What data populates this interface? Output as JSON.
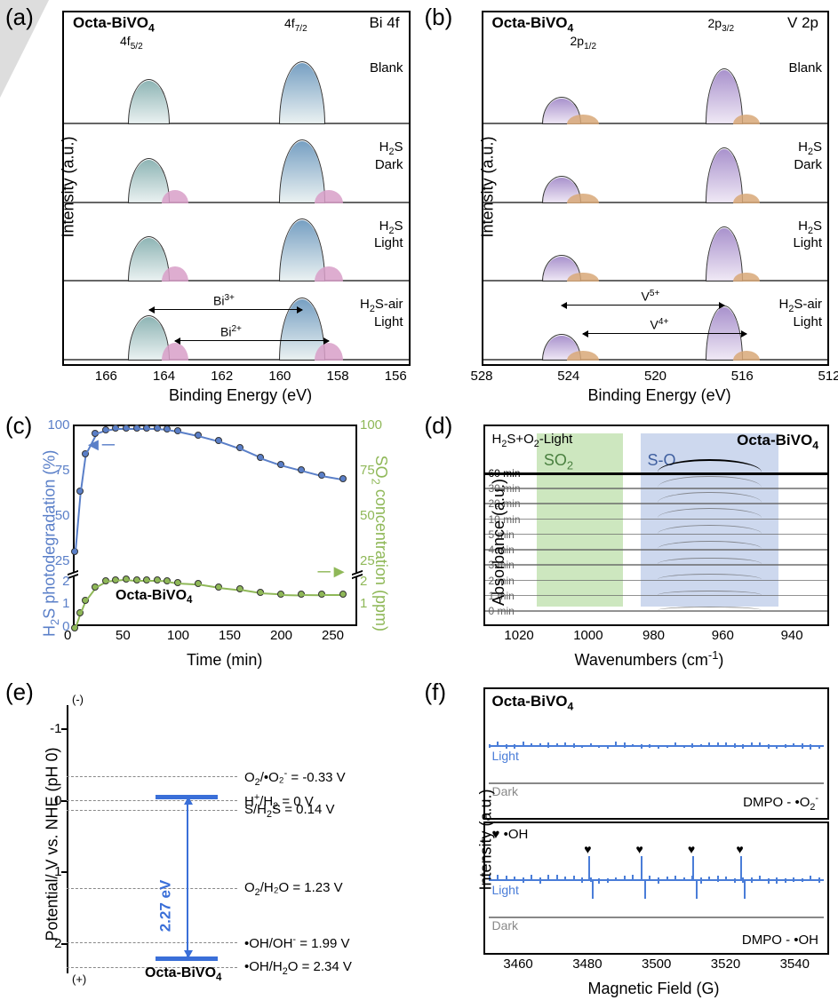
{
  "panels": {
    "a": {
      "label": "(a)",
      "title": "Octa-BiVO₄",
      "orbital": "Bi 4f",
      "y_axis": "Intensity (a.u.)",
      "x_axis": "Binding Energy (eV)",
      "x_ticks": [
        166,
        164,
        162,
        160,
        158,
        156
      ],
      "xlim": [
        167.5,
        155.5
      ],
      "rows": [
        "Blank",
        "H₂S\nDark",
        "H₂S\nLight",
        "H₂S-air\nLight"
      ],
      "peak_labels": {
        "left": "4f",
        "left_sub": "5/2",
        "right": "4f",
        "right_sub": "7/2"
      },
      "species": {
        "major": "Bi³⁺",
        "minor": "Bi²⁺"
      },
      "colors": {
        "peak_major": "#7ba8a8",
        "peak_major2": "#5f8fb8",
        "peak_minor": "#d89fc8",
        "outline": "#333333"
      },
      "peak_positions_ev": {
        "bi3_4f52": 164.5,
        "bi3_4f72": 159.2,
        "bi2_4f52": 163.6,
        "bi2_4f72": 158.3
      }
    },
    "b": {
      "label": "(b)",
      "title": "Octa-BiVO₄",
      "orbital": "V 2p",
      "y_axis": "Intensity (a.u.)",
      "x_axis": "Binding Energy (eV)",
      "x_ticks": [
        528,
        524,
        520,
        516,
        512
      ],
      "xlim": [
        528,
        512
      ],
      "rows": [
        "Blank",
        "H₂S\nDark",
        "H₂S\nLight",
        "H₂S-air\nLight"
      ],
      "peak_labels": {
        "left": "2p",
        "left_sub": "1/2",
        "right": "2p",
        "right_sub": "3/2"
      },
      "species": {
        "major": "V⁵⁺",
        "minor": "V⁴⁺"
      },
      "colors": {
        "peak_major": "#9a7fc4",
        "peak_minor": "#d8a878",
        "outline": "#333333"
      },
      "peak_positions_ev": {
        "v5_2p12": 524.3,
        "v5_2p32": 516.8,
        "v4_2p12": 523.3,
        "v4_2p32": 515.8
      }
    },
    "c": {
      "label": "(c)",
      "title": "Octa-BiVO₄",
      "y_axis_left": "H₂S photodegradation (%)",
      "y_axis_right": "SO₂ concentration (ppm)",
      "x_axis": "Time (min)",
      "x_ticks": [
        0,
        50,
        100,
        150,
        200,
        250
      ],
      "xlim": [
        0,
        275
      ],
      "y_left_ticks_upper": [
        25,
        50,
        75,
        100
      ],
      "y_left_ticks_lower": [
        0,
        1,
        2
      ],
      "y_right_ticks_upper": [
        25,
        50,
        75,
        100
      ],
      "y_right_ticks_lower": [
        1,
        2
      ],
      "colors": {
        "h2s": "#5a7fc8",
        "so2": "#8fb858"
      },
      "break_pos_pct": 25,
      "h2s_data": [
        {
          "t": 0,
          "v": 31
        },
        {
          "t": 5,
          "v": 64
        },
        {
          "t": 10,
          "v": 85
        },
        {
          "t": 20,
          "v": 96
        },
        {
          "t": 30,
          "v": 98
        },
        {
          "t": 40,
          "v": 99
        },
        {
          "t": 50,
          "v": 99
        },
        {
          "t": 60,
          "v": 99
        },
        {
          "t": 70,
          "v": 99
        },
        {
          "t": 80,
          "v": 99
        },
        {
          "t": 90,
          "v": 98.5
        },
        {
          "t": 100,
          "v": 97.5
        },
        {
          "t": 120,
          "v": 95
        },
        {
          "t": 140,
          "v": 92
        },
        {
          "t": 160,
          "v": 88
        },
        {
          "t": 180,
          "v": 83
        },
        {
          "t": 200,
          "v": 79
        },
        {
          "t": 220,
          "v": 76
        },
        {
          "t": 240,
          "v": 73
        },
        {
          "t": 260,
          "v": 71
        }
      ],
      "so2_data": [
        {
          "t": 0,
          "v": 0
        },
        {
          "t": 5,
          "v": 0.65
        },
        {
          "t": 10,
          "v": 1.2
        },
        {
          "t": 20,
          "v": 1.8
        },
        {
          "t": 30,
          "v": 2.05
        },
        {
          "t": 40,
          "v": 2.1
        },
        {
          "t": 50,
          "v": 2.15
        },
        {
          "t": 60,
          "v": 2.1
        },
        {
          "t": 70,
          "v": 2.1
        },
        {
          "t": 80,
          "v": 2.1
        },
        {
          "t": 90,
          "v": 2.08
        },
        {
          "t": 100,
          "v": 2.0
        },
        {
          "t": 120,
          "v": 1.95
        },
        {
          "t": 140,
          "v": 1.8
        },
        {
          "t": 160,
          "v": 1.7
        },
        {
          "t": 180,
          "v": 1.55
        },
        {
          "t": 200,
          "v": 1.5
        },
        {
          "t": 220,
          "v": 1.48
        },
        {
          "t": 240,
          "v": 1.47
        },
        {
          "t": 260,
          "v": 1.47
        }
      ]
    },
    "d": {
      "label": "(d)",
      "title": "Octa-BiVO₄",
      "condition": "H₂S+O₂-Light",
      "y_axis": "Absorbance (a.u.)",
      "x_axis": "Wavenumbers (cm⁻¹)",
      "x_ticks": [
        1020,
        1000,
        980,
        960,
        940
      ],
      "xlim": [
        1030,
        930
      ],
      "bands": [
        {
          "label": "SO₂",
          "from": 1015,
          "to": 990,
          "color": "#c8e4b8"
        },
        {
          "label": "S-O",
          "from": 985,
          "to": 945,
          "color": "#c8d4ec"
        }
      ],
      "times": [
        "60 min",
        "30 min",
        "20 min",
        "10 min",
        "5 min",
        "4 min",
        "3 min",
        "2 min",
        "1 min",
        "0 min"
      ],
      "trace_color": "#888888",
      "bold_trace_color": "#000000"
    },
    "e": {
      "label": "(e)",
      "title": "Octa-BiVO₄",
      "y_axis": "Potential/ V vs. NHE (pH 0)",
      "y_ticks": [
        -1,
        0,
        1,
        2
      ],
      "ylim": [
        -1.5,
        2.6
      ],
      "band_gap": "2.27 eV",
      "cb_pos": -0.05,
      "vb_pos": 2.22,
      "colors": {
        "band": "#3a6fd8"
      },
      "levels": [
        {
          "text": "O₂/•O₂⁻ = -0.33 V",
          "v": -0.33
        },
        {
          "text": "H⁺/H₂ = 0 V",
          "v": 0
        },
        {
          "text": "S/H₂S = 0.14 V",
          "v": 0.14
        },
        {
          "text": "O₂/H₂O = 1.23 V",
          "v": 1.23
        },
        {
          "text": "•OH/OH⁻ = 1.99 V",
          "v": 1.99
        },
        {
          "text": "•OH/H₂O = 2.34 V",
          "v": 2.34
        }
      ]
    },
    "f": {
      "label": "(f)",
      "title": "Octa-BiVO₄",
      "y_axis": "Intensity (a.u.)",
      "x_axis": "Magnetic Field (G)",
      "x_ticks": [
        3460,
        3480,
        3500,
        3520,
        3540
      ],
      "xlim": [
        3450,
        3550
      ],
      "subpanels": [
        {
          "species": "DMPO - •O₂⁻",
          "light_color": "#4a7dd8",
          "dark_color": "#888888"
        },
        {
          "species": "DMPO - •OH",
          "light_color": "#4a7dd8",
          "dark_color": "#888888"
        }
      ],
      "oh_marker": "♥ •OH",
      "oh_peak_positions": [
        3480,
        3495,
        3510,
        3524
      ],
      "trace_labels": {
        "light": "Light",
        "dark": "Dark"
      }
    }
  }
}
